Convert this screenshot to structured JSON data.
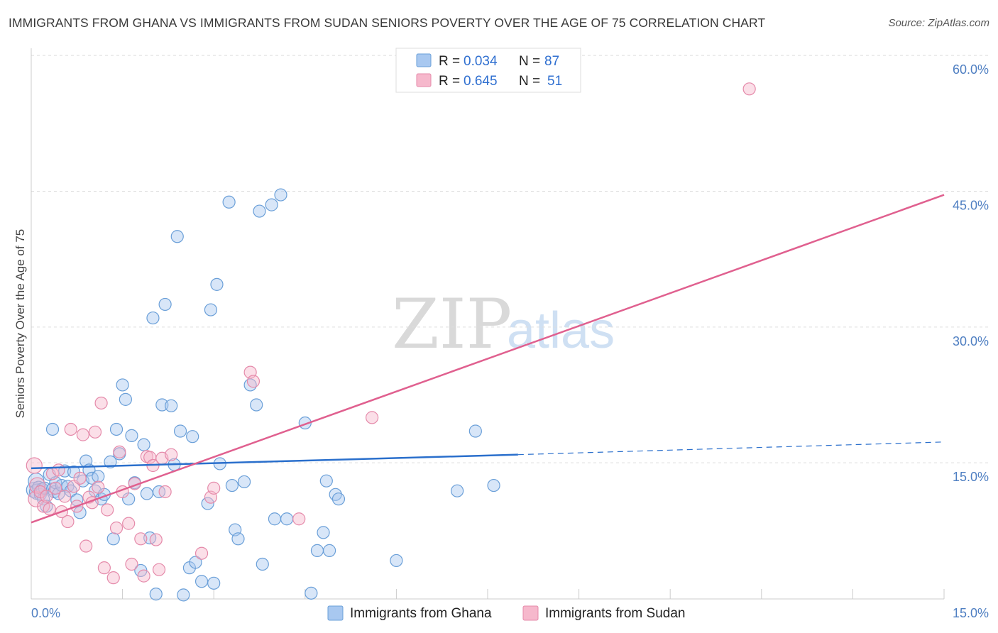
{
  "title": "IMMIGRANTS FROM GHANA VS IMMIGRANTS FROM SUDAN SENIORS POVERTY OVER THE AGE OF 75 CORRELATION CHART",
  "source": "Source: ZipAtlas.com",
  "watermark": {
    "zip": "ZIP",
    "atlas": "atlas"
  },
  "legend_top": [
    {
      "r_label": "R = ",
      "r_value": "0.034",
      "n_label": "N = ",
      "n_value": "87"
    },
    {
      "r_label": "R = ",
      "r_value": "0.645",
      "n_label": "N = ",
      "n_value": "51"
    }
  ],
  "colors": {
    "ghana_fill": "#a8c8f0",
    "ghana_stroke": "#6a9fd8",
    "ghana_line": "#2a6fcc",
    "sudan_fill": "#f6b8cc",
    "sudan_stroke": "#e58aaa",
    "sudan_line": "#e0608f",
    "tick_label": "#4f7fc2",
    "grid": "#dddddd"
  },
  "chart_data": {
    "type": "scatter",
    "title": "IMMIGRANTS FROM GHANA VS IMMIGRANTS FROM SUDAN SENIORS POVERTY OVER THE AGE OF 75 CORRELATION CHART",
    "xlabel": "",
    "ylabel": "Seniors Poverty Over the Age of 75",
    "xlim": [
      0,
      15
    ],
    "ylim": [
      0,
      60
    ],
    "x_tick_labels": [
      "0.0%",
      "15.0%"
    ],
    "y_ticks": [
      15,
      30,
      45,
      60
    ],
    "y_tick_labels": [
      "15.0%",
      "30.0%",
      "45.0%",
      "60.0%"
    ],
    "legend_bottom": [
      "Immigrants from Ghana",
      "Immigrants from Sudan"
    ],
    "series": [
      {
        "name": "Immigrants from Ghana",
        "r": 0.034,
        "n": 87,
        "trend": {
          "x0": 0,
          "y0": 14.4,
          "x1": 8.0,
          "y1": 15.9,
          "dashed_to_x": 15,
          "dashed_to_y": 17.3
        },
        "points": [
          [
            0.05,
            12.0
          ],
          [
            0.08,
            13.0
          ],
          [
            0.1,
            11.8
          ],
          [
            0.12,
            12.3
          ],
          [
            0.15,
            11.5
          ],
          [
            0.18,
            12.1
          ],
          [
            0.2,
            11.0
          ],
          [
            0.22,
            12.2
          ],
          [
            0.25,
            10.2
          ],
          [
            0.3,
            13.7
          ],
          [
            0.35,
            12.1
          ],
          [
            0.38,
            11.8
          ],
          [
            0.4,
            12.8
          ],
          [
            0.45,
            11.6
          ],
          [
            0.5,
            12.5
          ],
          [
            0.55,
            14.1
          ],
          [
            0.6,
            12.4
          ],
          [
            0.65,
            11.9
          ],
          [
            0.7,
            14.0
          ],
          [
            0.75,
            10.9
          ],
          [
            0.8,
            9.5
          ],
          [
            0.85,
            13.0
          ],
          [
            0.9,
            15.2
          ],
          [
            0.95,
            14.2
          ],
          [
            1.0,
            13.3
          ],
          [
            1.05,
            11.9
          ],
          [
            1.1,
            13.5
          ],
          [
            1.15,
            11.0
          ],
          [
            1.2,
            11.5
          ],
          [
            1.3,
            15.1
          ],
          [
            1.35,
            6.6
          ],
          [
            1.4,
            18.7
          ],
          [
            1.45,
            16.0
          ],
          [
            1.5,
            23.6
          ],
          [
            1.55,
            22.0
          ],
          [
            1.6,
            11.0
          ],
          [
            1.65,
            18.0
          ],
          [
            1.7,
            12.8
          ],
          [
            1.8,
            3.1
          ],
          [
            1.85,
            17.0
          ],
          [
            1.9,
            11.6
          ],
          [
            1.95,
            6.7
          ],
          [
            2.0,
            31.0
          ],
          [
            2.05,
            0.5
          ],
          [
            2.1,
            11.8
          ],
          [
            2.15,
            21.4
          ],
          [
            2.2,
            32.5
          ],
          [
            2.3,
            21.3
          ],
          [
            2.35,
            14.8
          ],
          [
            2.4,
            40.0
          ],
          [
            2.45,
            18.5
          ],
          [
            2.5,
            0.4
          ],
          [
            2.6,
            3.4
          ],
          [
            2.65,
            17.9
          ],
          [
            2.7,
            4.0
          ],
          [
            2.8,
            1.9
          ],
          [
            2.9,
            10.5
          ],
          [
            2.95,
            31.9
          ],
          [
            3.0,
            1.7
          ],
          [
            3.05,
            34.7
          ],
          [
            3.1,
            14.9
          ],
          [
            3.25,
            43.8
          ],
          [
            3.3,
            12.5
          ],
          [
            3.35,
            7.6
          ],
          [
            3.4,
            6.6
          ],
          [
            3.5,
            12.9
          ],
          [
            3.6,
            23.6
          ],
          [
            3.7,
            21.4
          ],
          [
            3.75,
            42.8
          ],
          [
            3.8,
            3.8
          ],
          [
            3.95,
            43.5
          ],
          [
            4.0,
            8.8
          ],
          [
            4.1,
            44.6
          ],
          [
            4.2,
            8.8
          ],
          [
            4.5,
            19.4
          ],
          [
            4.6,
            0.6
          ],
          [
            4.7,
            5.3
          ],
          [
            4.8,
            7.3
          ],
          [
            4.85,
            13.0
          ],
          [
            4.9,
            5.3
          ],
          [
            5.0,
            11.5
          ],
          [
            5.05,
            11.0
          ],
          [
            6.0,
            4.2
          ],
          [
            7.0,
            11.9
          ],
          [
            7.3,
            18.5
          ],
          [
            7.6,
            12.5
          ],
          [
            0.35,
            18.7
          ]
        ]
      },
      {
        "name": "Immigrants from Sudan",
        "r": 0.645,
        "n": 51,
        "trend": {
          "x0": 0,
          "y0": 8.4,
          "x1": 15,
          "y1": 44.6
        },
        "points": [
          [
            0.05,
            14.7
          ],
          [
            0.08,
            11.0
          ],
          [
            0.1,
            12.5
          ],
          [
            0.15,
            11.8
          ],
          [
            0.2,
            10.2
          ],
          [
            0.25,
            11.3
          ],
          [
            0.3,
            9.9
          ],
          [
            0.35,
            13.8
          ],
          [
            0.4,
            12.2
          ],
          [
            0.45,
            14.2
          ],
          [
            0.5,
            9.6
          ],
          [
            0.55,
            11.3
          ],
          [
            0.6,
            8.5
          ],
          [
            0.65,
            18.7
          ],
          [
            0.7,
            12.4
          ],
          [
            0.75,
            10.2
          ],
          [
            0.8,
            13.3
          ],
          [
            0.85,
            18.1
          ],
          [
            0.9,
            5.8
          ],
          [
            0.95,
            11.2
          ],
          [
            1.0,
            10.6
          ],
          [
            1.05,
            18.4
          ],
          [
            1.1,
            12.3
          ],
          [
            1.15,
            21.6
          ],
          [
            1.2,
            3.4
          ],
          [
            1.25,
            9.8
          ],
          [
            1.35,
            2.3
          ],
          [
            1.4,
            7.8
          ],
          [
            1.45,
            16.2
          ],
          [
            1.5,
            11.8
          ],
          [
            1.6,
            8.3
          ],
          [
            1.65,
            3.8
          ],
          [
            1.7,
            12.7
          ],
          [
            1.8,
            6.6
          ],
          [
            1.85,
            2.5
          ],
          [
            1.9,
            15.7
          ],
          [
            1.95,
            15.6
          ],
          [
            2.0,
            14.7
          ],
          [
            2.05,
            6.5
          ],
          [
            2.1,
            3.2
          ],
          [
            2.15,
            15.5
          ],
          [
            2.2,
            11.8
          ],
          [
            2.3,
            15.9
          ],
          [
            2.8,
            5.0
          ],
          [
            2.95,
            11.2
          ],
          [
            3.0,
            12.2
          ],
          [
            3.6,
            25.0
          ],
          [
            3.65,
            24.0
          ],
          [
            4.4,
            8.8
          ],
          [
            5.6,
            20.0
          ],
          [
            11.8,
            56.3
          ]
        ]
      }
    ]
  }
}
